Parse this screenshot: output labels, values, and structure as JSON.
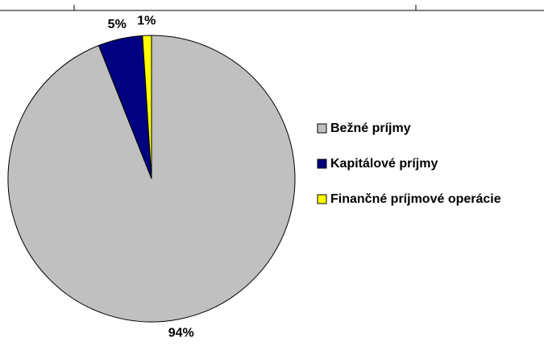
{
  "chart_data": {
    "type": "pie",
    "categories": [
      "Bežné príjmy",
      "Kapitálové príjmy",
      "Finančné príjmové operácie"
    ],
    "values": [
      94,
      5,
      1
    ],
    "value_labels": [
      "94%",
      "5%",
      "1%"
    ],
    "colors": [
      "#c0c0c0",
      "#000080",
      "#ffff00"
    ],
    "legend": "right"
  }
}
